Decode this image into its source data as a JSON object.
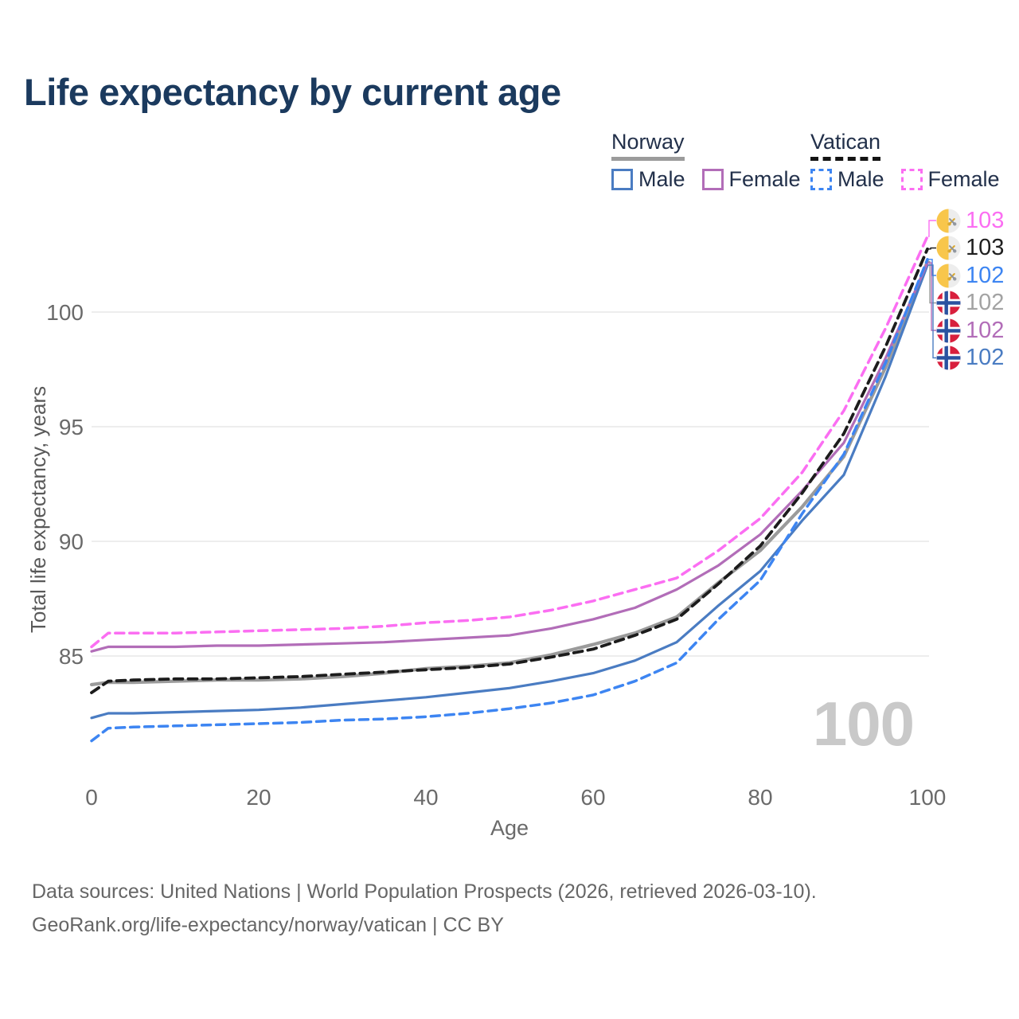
{
  "title": "Life expectancy by current age",
  "watermark": "100",
  "legend": {
    "groups": [
      {
        "label": "Norway",
        "underline_style": "solid",
        "underline_color": "#9b9b9b",
        "items": [
          {
            "label": "Male",
            "series": "norway_male"
          },
          {
            "label": "Female",
            "series": "norway_female"
          }
        ]
      },
      {
        "label": "Vatican",
        "underline_style": "dashed",
        "underline_color": "#141414",
        "items": [
          {
            "label": "Male",
            "series": "vatican_male"
          },
          {
            "label": "Female",
            "series": "vatican_female"
          }
        ]
      }
    ]
  },
  "axes": {
    "y": {
      "title": "Total life expectancy, years",
      "ticks": [
        "100",
        "95",
        "90",
        "85"
      ]
    },
    "x": {
      "title": "Age",
      "ticks": [
        "0",
        "20",
        "40",
        "60",
        "80",
        "100"
      ]
    }
  },
  "end_labels": [
    {
      "series": "vatican_female",
      "value": "103",
      "flag": "vatican",
      "color": "#fb6ef2",
      "elbow_x": 1167
    },
    {
      "series": "vatican_total",
      "value": "103",
      "flag": "vatican",
      "color": "#1f1f1f",
      "elbow_x": 1169
    },
    {
      "series": "vatican_male",
      "value": "102",
      "flag": "vatican",
      "color": "#3d85f2",
      "elbow_x": 1171
    },
    {
      "series": "norway_total",
      "value": "102",
      "flag": "norway",
      "color": "#a3a3a3",
      "elbow_x": 1168
    },
    {
      "series": "norway_female",
      "value": "102",
      "flag": "norway",
      "color": "#b26db8",
      "elbow_x": 1170
    },
    {
      "series": "norway_male",
      "value": "102",
      "flag": "norway",
      "color": "#4a7cc2",
      "elbow_x": 1172
    }
  ],
  "footer": {
    "line1": "Data sources: United Nations | World Population Prospects (2026, retrieved 2026-03-10).",
    "line2": "GeoRank.org/life-expectancy/norway/vatican | CC BY"
  },
  "chart_data": {
    "type": "line",
    "title": "Life expectancy by current age",
    "xlabel": "Age",
    "ylabel": "Total life expectancy, years",
    "xlim": [
      0,
      100
    ],
    "ylim": [
      80.5,
      104
    ],
    "x_ticks": [
      0,
      20,
      40,
      60,
      80,
      100
    ],
    "y_gridlines": [
      100,
      95,
      90,
      85
    ],
    "grid": "horizontal-only",
    "legend_position": "top-right",
    "x": [
      0,
      2,
      5,
      10,
      15,
      20,
      25,
      30,
      35,
      40,
      45,
      50,
      55,
      60,
      65,
      70,
      75,
      80,
      85,
      90,
      95,
      100
    ],
    "series": [
      {
        "id": "norway_total",
        "name": "Norway — Both sexes",
        "style": "solid",
        "color": "#9b9b9b",
        "width": 4.2,
        "dash": false,
        "values": [
          83.75,
          83.85,
          83.85,
          83.9,
          83.95,
          83.95,
          84.0,
          84.1,
          84.25,
          84.45,
          84.55,
          84.7,
          85.05,
          85.5,
          86.0,
          86.7,
          88.2,
          89.6,
          91.5,
          93.7,
          97.6,
          102.2
        ]
      },
      {
        "id": "norway_male",
        "name": "Norway — Male",
        "style": "solid",
        "color": "#4a7cc2",
        "width": 3.2,
        "dash": false,
        "values": [
          82.3,
          82.5,
          82.5,
          82.55,
          82.6,
          82.65,
          82.75,
          82.9,
          83.05,
          83.2,
          83.4,
          83.6,
          83.9,
          84.25,
          84.8,
          85.6,
          87.2,
          88.7,
          90.9,
          92.9,
          97.2,
          102.05
        ]
      },
      {
        "id": "norway_female",
        "name": "Norway — Female",
        "style": "solid",
        "color": "#b26db8",
        "width": 3.2,
        "dash": false,
        "values": [
          85.2,
          85.4,
          85.4,
          85.4,
          85.45,
          85.45,
          85.5,
          85.55,
          85.6,
          85.7,
          85.8,
          85.9,
          86.2,
          86.6,
          87.1,
          87.9,
          88.95,
          90.3,
          92.2,
          94.3,
          98.0,
          102.15
        ]
      },
      {
        "id": "vatican_male",
        "name": "Vatican — Male",
        "style": "dashed",
        "color": "#3d85f2",
        "width": 3.5,
        "dash": true,
        "values": [
          81.3,
          81.85,
          81.9,
          81.95,
          82.0,
          82.05,
          82.1,
          82.2,
          82.25,
          82.35,
          82.5,
          82.7,
          82.95,
          83.3,
          83.9,
          84.7,
          86.6,
          88.3,
          91.2,
          93.8,
          97.8,
          102.3
        ]
      },
      {
        "id": "vatican_female",
        "name": "Vatican — Female",
        "style": "dashed",
        "color": "#fb6ef2",
        "width": 3.5,
        "dash": true,
        "values": [
          85.4,
          86.0,
          86.0,
          86.0,
          86.05,
          86.1,
          86.15,
          86.2,
          86.3,
          86.45,
          86.55,
          86.7,
          87.0,
          87.4,
          87.9,
          88.4,
          89.6,
          91.0,
          93.0,
          95.7,
          99.3,
          103.3
        ]
      },
      {
        "id": "vatican_total",
        "name": "Vatican — Both sexes",
        "style": "dashed",
        "color": "#1c1c1c",
        "width": 3.8,
        "dash": true,
        "values": [
          83.4,
          83.9,
          83.95,
          84.0,
          84.0,
          84.05,
          84.1,
          84.2,
          84.3,
          84.4,
          84.5,
          84.65,
          84.95,
          85.3,
          85.9,
          86.6,
          88.15,
          89.8,
          92.1,
          94.7,
          98.5,
          102.75
        ]
      }
    ]
  }
}
